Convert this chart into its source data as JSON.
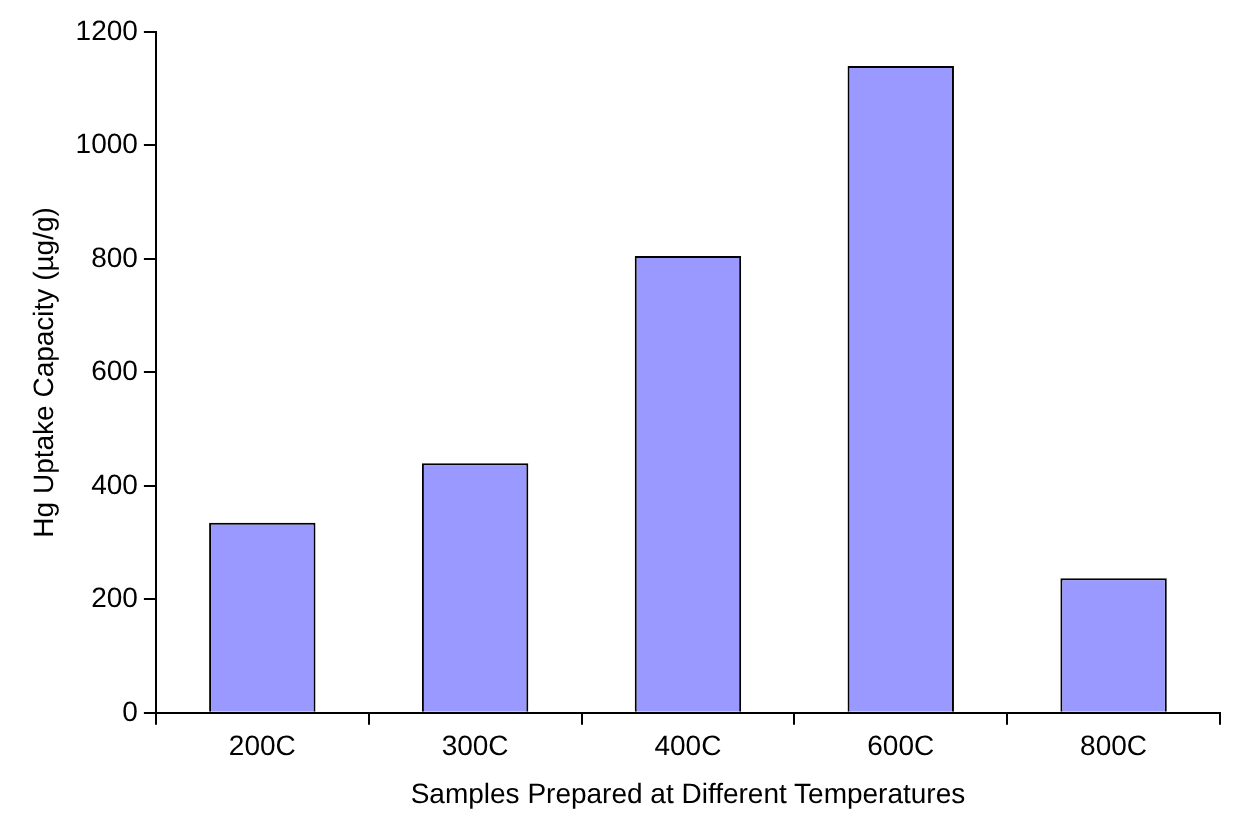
{
  "chart_data": {
    "type": "bar",
    "xlabel": "Samples Prepared at Different Temperatures",
    "ylabel": "Hg Uptake Capacity (µg/g)",
    "categories": [
      "200C",
      "300C",
      "400C",
      "600C",
      "800C"
    ],
    "values": [
      335,
      440,
      805,
      1140,
      237
    ],
    "color": "#9999ff",
    "ylim": [
      0,
      1200
    ],
    "yticks": [
      0,
      200,
      400,
      600,
      800,
      1000,
      1200
    ],
    "grid": false,
    "legend": false
  }
}
